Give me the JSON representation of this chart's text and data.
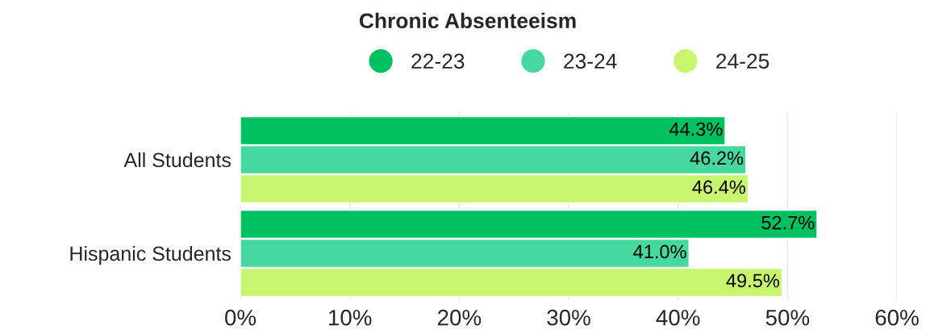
{
  "chart_data": {
    "type": "bar",
    "orientation": "horizontal",
    "title": "Chronic Absenteeism",
    "categories": [
      "All Students",
      "Hispanic Students"
    ],
    "series": [
      {
        "name": "22-23",
        "color": "#00c060",
        "values": [
          44.3,
          52.7
        ],
        "value_labels": [
          "44.3%",
          "52.7%"
        ]
      },
      {
        "name": "23-24",
        "color": "#45d99f",
        "values": [
          46.2,
          41.0
        ],
        "value_labels": [
          "46.2%",
          "41.0%"
        ]
      },
      {
        "name": "24-25",
        "color": "#c8f56e",
        "values": [
          46.4,
          49.5
        ],
        "value_labels": [
          "46.4%",
          "49.5%"
        ]
      }
    ],
    "xlim": [
      0,
      60
    ],
    "xticks": [
      {
        "value": 0,
        "label": "0%"
      },
      {
        "value": 10,
        "label": "10%"
      },
      {
        "value": 20,
        "label": "20%"
      },
      {
        "value": 30,
        "label": "30%"
      },
      {
        "value": 40,
        "label": "40%"
      },
      {
        "value": 50,
        "label": "50%"
      },
      {
        "value": 60,
        "label": "60%"
      }
    ],
    "grid": "x",
    "legend": "top"
  }
}
